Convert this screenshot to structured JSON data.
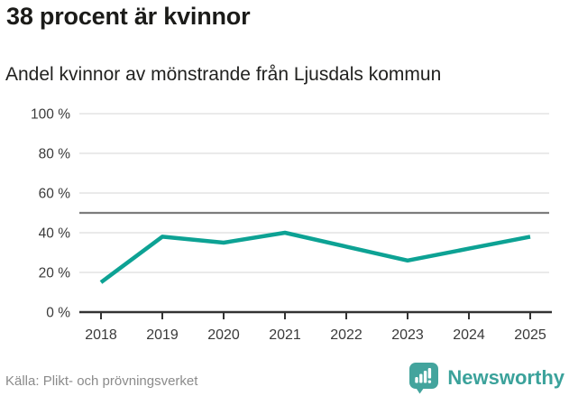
{
  "header": {
    "title": "38 procent är kvinnor",
    "subtitle": "Andel kvinnor av mönstrande från Ljusdals kommun"
  },
  "chart_data": {
    "type": "line",
    "title": "38 procent är kvinnor",
    "subtitle": "Andel kvinnor av mönstrande från Ljusdals kommun",
    "categories": [
      2018,
      2019,
      2020,
      2021,
      2022,
      2023,
      2024,
      2025
    ],
    "values": [
      15,
      38,
      35,
      40,
      33,
      26,
      32,
      38
    ],
    "unit": "%",
    "xlabel": "",
    "ylabel": "",
    "ylim": [
      0,
      100
    ],
    "yticks": [
      0,
      20,
      40,
      60,
      80,
      100
    ],
    "yticklabels": [
      "0 %",
      "20 %",
      "40 %",
      "60 %",
      "80 %",
      "100 %"
    ],
    "reference_line": 50,
    "line_color": "#0da294",
    "grid": true,
    "legend": "none"
  },
  "footer": {
    "source": "Källa: Plikt- och prövningsverket",
    "brand": "Newsworthy"
  },
  "colors": {
    "accent": "#0da294",
    "grid": "#e3e3e3",
    "reference": "#7d7d7d",
    "axis": "#333333",
    "axis_text": "#3a3a3a",
    "title_text": "#1b1b19",
    "muted_text": "#8b8b8b",
    "logo": "#43a49d",
    "logo_text": "#3ba29b"
  }
}
